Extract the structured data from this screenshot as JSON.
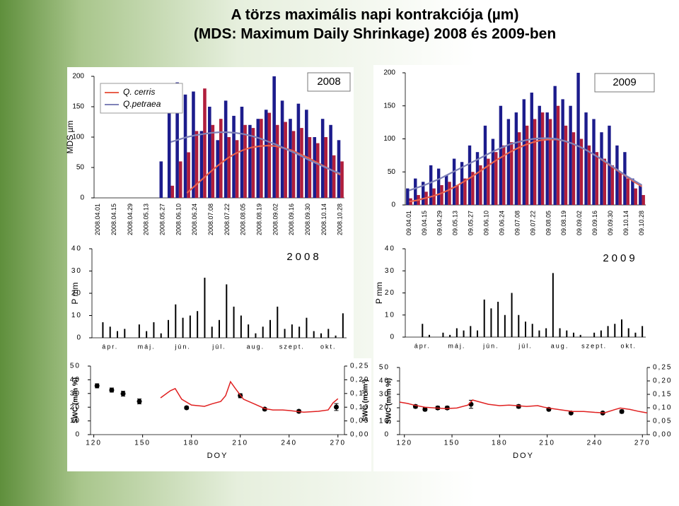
{
  "title": "A törzs maximális napi kontrakciója (µm)",
  "subtitle": "(MDS: Maximum Daily Shrinkage) 2008 és 2009-ben",
  "chart_data": [
    {
      "type": "bar",
      "label": "2008",
      "ylabel": "MDS µm",
      "categories": [
        "2008.04.01",
        null,
        "2008.04.15",
        null,
        "2008.04.29",
        null,
        "2008.05.13",
        null,
        "2008.05.27",
        null,
        "2008.06.10",
        null,
        "2008.06.24",
        null,
        "2008.07.08",
        null,
        "2008.07.22",
        null,
        "2008.08.05",
        null,
        "2008.08.19",
        null,
        "2008.09.02",
        null,
        "2008.09.16",
        null,
        "2008.09.30",
        null,
        "2008.10.14",
        null,
        "2008.10.28"
      ],
      "ylim": [
        0,
        200
      ],
      "yticks": [
        0,
        50,
        100,
        150,
        200
      ],
      "series": [
        {
          "type": "bar",
          "color": "#1c1c8c",
          "values": [
            null,
            null,
            null,
            null,
            null,
            null,
            null,
            null,
            60,
            140,
            190,
            170,
            175,
            110,
            150,
            95,
            160,
            135,
            150,
            120,
            130,
            145,
            200,
            160,
            130,
            155,
            145,
            100,
            130,
            120,
            95
          ]
        },
        {
          "type": "bar",
          "color": "#b01e3c",
          "values": [
            null,
            null,
            null,
            null,
            null,
            null,
            null,
            null,
            null,
            20,
            60,
            75,
            110,
            180,
            120,
            130,
            100,
            95,
            120,
            115,
            130,
            140,
            120,
            125,
            110,
            115,
            100,
            90,
            100,
            70,
            60
          ]
        },
        {
          "type": "line",
          "name": "Q. cerris",
          "color": "#e8604c",
          "values": [
            null,
            null,
            null,
            null,
            null,
            null,
            null,
            null,
            null,
            null,
            null,
            8,
            20,
            32,
            44,
            55,
            65,
            73,
            79,
            83,
            85,
            86,
            85,
            82,
            78,
            72,
            66,
            59,
            52,
            45,
            38
          ]
        },
        {
          "type": "line",
          "name": "Q.petraea",
          "color": "#7f82b8",
          "values": [
            null,
            null,
            null,
            null,
            null,
            null,
            null,
            null,
            null,
            92,
            96,
            100,
            103,
            105,
            107,
            108,
            108,
            107,
            105,
            102,
            98,
            93,
            88,
            82,
            76,
            70,
            63,
            57,
            51,
            45,
            40
          ]
        }
      ]
    },
    {
      "type": "bar",
      "label": "2009",
      "categories": [
        "09.04.01",
        null,
        "09.04.15",
        null,
        "09.04.29",
        null,
        "09.05.13",
        null,
        "09.05.27",
        null,
        "09.06.10",
        null,
        "09.06.24",
        null,
        "09.07.08",
        null,
        "09.07.22",
        null,
        "09.08.05",
        null,
        "09.08.19",
        null,
        "09.09.02",
        null,
        "09.09.16",
        null,
        "09.09.30",
        null,
        "09.10.14",
        null,
        "09.10.28"
      ],
      "ylim": [
        0,
        200
      ],
      "yticks": [
        0,
        50,
        100,
        150,
        200
      ],
      "series": [
        {
          "type": "bar",
          "color": "#1c1c8c",
          "values": [
            25,
            40,
            35,
            60,
            55,
            45,
            70,
            65,
            90,
            80,
            120,
            100,
            150,
            130,
            140,
            160,
            170,
            150,
            140,
            180,
            160,
            150,
            200,
            140,
            130,
            110,
            120,
            90,
            80,
            40,
            30
          ]
        },
        {
          "type": "bar",
          "color": "#b01e3c",
          "values": [
            10,
            15,
            20,
            25,
            30,
            35,
            30,
            40,
            50,
            60,
            70,
            80,
            90,
            95,
            110,
            120,
            130,
            140,
            130,
            150,
            120,
            110,
            100,
            90,
            80,
            70,
            60,
            50,
            40,
            25,
            15
          ]
        },
        {
          "type": "line",
          "color": "#e8604c",
          "values": [
            5,
            7,
            10,
            13,
            17,
            22,
            28,
            35,
            42,
            50,
            58,
            66,
            73,
            80,
            86,
            91,
            95,
            98,
            99,
            99,
            97,
            93,
            88,
            82,
            75,
            67,
            59,
            51,
            43,
            35,
            28
          ]
        },
        {
          "type": "line",
          "color": "#7f82b8",
          "values": [
            22,
            26,
            30,
            35,
            40,
            46,
            52,
            58,
            64,
            70,
            76,
            82,
            87,
            92,
            95,
            98,
            100,
            101,
            101,
            100,
            97,
            93,
            88,
            82,
            75,
            68,
            60,
            52,
            44,
            37,
            30
          ]
        }
      ]
    },
    {
      "type": "bar",
      "label": "2008",
      "ylabel": "P mm",
      "color": "#000000",
      "categories": [
        null,
        null,
        "ápr.",
        null,
        null,
        null,
        null,
        "máj.",
        null,
        null,
        null,
        null,
        "jún.",
        null,
        null,
        null,
        null,
        "júl.",
        null,
        null,
        null,
        null,
        "aug.",
        null,
        null,
        null,
        null,
        "szept.",
        null,
        null,
        null,
        null,
        "okt.",
        null,
        null
      ],
      "values": [
        0,
        7,
        5,
        3,
        4,
        0,
        6,
        3,
        7,
        2,
        8,
        15,
        9,
        10,
        12,
        27,
        5,
        8,
        24,
        14,
        10,
        6,
        2,
        5,
        8,
        14,
        4,
        6,
        5,
        9,
        3,
        2,
        4,
        1,
        11
      ],
      "ylim": [
        0,
        40
      ],
      "yticks": [
        0,
        10,
        20,
        30,
        40
      ]
    },
    {
      "type": "bar",
      "label": "2009",
      "ylabel": "P mm",
      "color": "#000000",
      "categories": [
        null,
        null,
        "ápr.",
        null,
        null,
        null,
        null,
        "máj.",
        null,
        null,
        null,
        null,
        "jún.",
        null,
        null,
        null,
        null,
        "júl.",
        null,
        null,
        null,
        null,
        "aug.",
        null,
        null,
        null,
        null,
        "szept.",
        null,
        null,
        null,
        null,
        "okt.",
        null,
        null
      ],
      "values": [
        0,
        0,
        6,
        1,
        0,
        2,
        1,
        4,
        3,
        5,
        3,
        17,
        13,
        16,
        10,
        20,
        10,
        7,
        6,
        3,
        4,
        29,
        4,
        3,
        2,
        1,
        0,
        2,
        3,
        5,
        6,
        8,
        4,
        2,
        5
      ],
      "ylim": [
        0,
        40
      ],
      "yticks": [
        0,
        10,
        20,
        30,
        40
      ]
    },
    {
      "type": "scatter",
      "ylabel": "SWC (m/m %)",
      "y2label": "SWC (m³/m³)",
      "xlabel": "DOY",
      "xlim": [
        118,
        274
      ],
      "xticks": [
        120,
        150,
        180,
        210,
        240,
        270
      ],
      "ylim": [
        0,
        50
      ],
      "yticks": [
        0,
        10,
        20,
        30,
        40,
        50
      ],
      "y2lim": [
        0,
        0.25
      ],
      "y2ticks": [
        {
          "value": 0,
          "label": "0,00"
        },
        {
          "value": 0.05,
          "label": "0,05"
        },
        {
          "value": 0.1,
          "label": "0,10"
        },
        {
          "value": 0.15,
          "label": "0,15"
        },
        {
          "value": 0.2,
          "label": "0,20"
        },
        {
          "value": 0.25,
          "label": "0,25"
        }
      ],
      "series": [
        {
          "type": "scatter",
          "color": "#000000",
          "x": [
            122,
            131,
            138,
            148,
            177,
            210,
            225,
            246,
            269
          ],
          "values": [
            35.6,
            32.5,
            29.9,
            24.2,
            19.6,
            28.4,
            18.6,
            17,
            20.1
          ],
          "errors": [
            1.5,
            1.5,
            1.8,
            1.8,
            1,
            1.5,
            1,
            1,
            2.5
          ]
        },
        {
          "type": "line",
          "axis": "y2",
          "color": "#e02020",
          "x": [
            161,
            167,
            170,
            174,
            180,
            188,
            193,
            198,
            201,
            204,
            207,
            212,
            219,
            225,
            230,
            236,
            240,
            249,
            258,
            264,
            267,
            270
          ],
          "values": [
            0.134,
            0.16,
            0.168,
            0.129,
            0.108,
            0.103,
            0.113,
            0.121,
            0.142,
            0.193,
            0.168,
            0.129,
            0.111,
            0.095,
            0.09,
            0.09,
            0.088,
            0.082,
            0.085,
            0.09,
            0.116,
            0.131
          ]
        }
      ]
    },
    {
      "type": "scatter",
      "ylabel": "SWC (m/m %)",
      "xlabel": "DOY",
      "xlim": [
        117,
        273
      ],
      "xticks": [
        120,
        150,
        180,
        210,
        240,
        270
      ],
      "ylim": [
        0,
        50
      ],
      "yticks": [
        0,
        10,
        20,
        30,
        40,
        50
      ],
      "y2lim": [
        0,
        0.25
      ],
      "y2ticks": [
        {
          "value": 0,
          "label": "0,00"
        },
        {
          "value": 0.05,
          "label": "0,05"
        },
        {
          "value": 0.1,
          "label": "0,10"
        },
        {
          "value": 0.15,
          "label": "0,15"
        },
        {
          "value": 0.2,
          "label": "0,20"
        },
        {
          "value": 0.25,
          "label": "0,25"
        }
      ],
      "series": [
        {
          "type": "scatter",
          "color": "#000000",
          "x": [
            127,
            133,
            141,
            147,
            162,
            192,
            211,
            225,
            245,
            257
          ],
          "values": [
            21,
            18.8,
            19.9,
            19.9,
            22.6,
            21,
            18.8,
            16.1,
            16.1,
            17.2
          ],
          "errors": [
            1.2,
            1.2,
            1.2,
            1.2,
            3,
            1.2,
            1,
            0.8,
            0.8,
            1.2
          ]
        },
        {
          "type": "line",
          "axis": "y2",
          "color": "#e02020",
          "x": [
            117,
            122,
            126,
            133,
            140,
            146,
            153,
            160,
            163,
            166,
            173,
            180,
            186,
            191,
            197,
            204,
            208,
            213,
            220,
            226,
            233,
            240,
            246,
            253,
            256,
            262,
            268,
            273
          ],
          "values": [
            0.121,
            0.116,
            0.11,
            0.102,
            0.099,
            0.097,
            0.099,
            0.11,
            0.129,
            0.124,
            0.113,
            0.108,
            0.11,
            0.108,
            0.105,
            0.108,
            0.102,
            0.097,
            0.091,
            0.086,
            0.086,
            0.083,
            0.081,
            0.094,
            0.099,
            0.094,
            0.086,
            0.081
          ]
        }
      ]
    }
  ]
}
